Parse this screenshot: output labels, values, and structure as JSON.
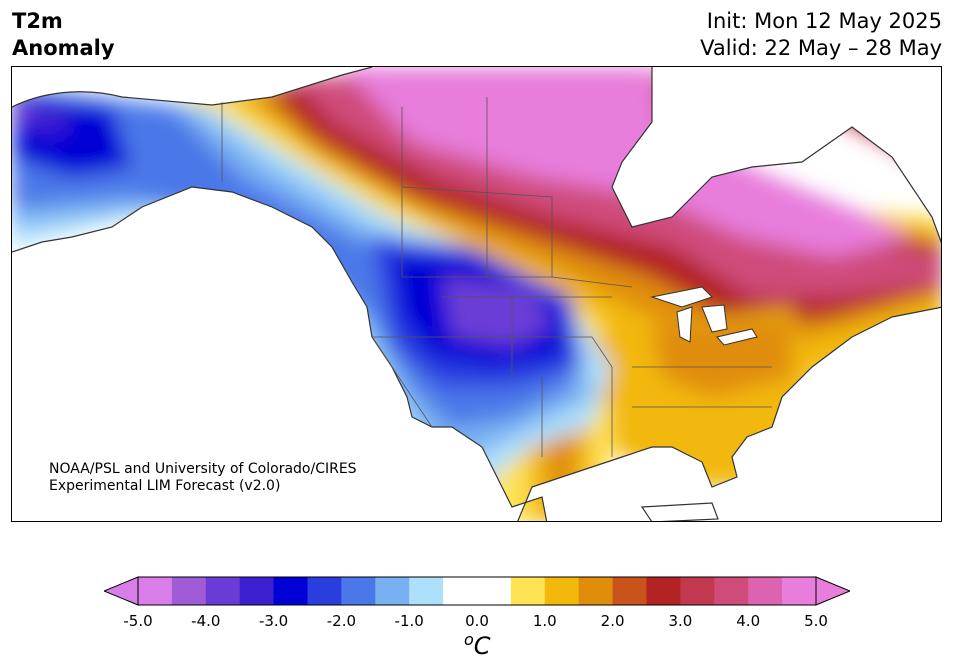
{
  "header": {
    "title_line1": "T2m",
    "title_line2": "Anomaly",
    "init": "Init: Mon 12 May 2025",
    "valid": "Valid: 22 May – 28 May"
  },
  "credit": {
    "line1": "NOAA/PSL and University of Colorado/CIRES",
    "line2": "Experimental LIM Forecast (v2.0)"
  },
  "colorbar": {
    "ticks": [
      "-5.0",
      "-4.0",
      "-3.0",
      "-2.0",
      "-1.0",
      "0.0",
      "1.0",
      "2.0",
      "3.0",
      "4.0",
      "5.0"
    ],
    "unit_sup": "o",
    "unit": "C",
    "colors": [
      "#d97ee8",
      "#a05bd6",
      "#6a3cd6",
      "#3b1fd0",
      "#0000d6",
      "#2a3ee0",
      "#4b78e8",
      "#79b0f2",
      "#aee0fb",
      "#ffffff",
      "#ffffff",
      "#ffe352",
      "#f2b80a",
      "#e08d0a",
      "#c9531a",
      "#b32323",
      "#c2384e",
      "#cf4c7a",
      "#dd62b0",
      "#e87ddc"
    ]
  },
  "map": {
    "legend_colors": {
      "deep_cold": "#6a3cd6",
      "cold": "#0000d6",
      "cool": "#4b78e8",
      "mild_cool": "#aee0fb",
      "warm": "#ffe352",
      "warmer": "#f2b80a",
      "hot": "#b32323",
      "very_hot": "#e87ddc"
    }
  }
}
